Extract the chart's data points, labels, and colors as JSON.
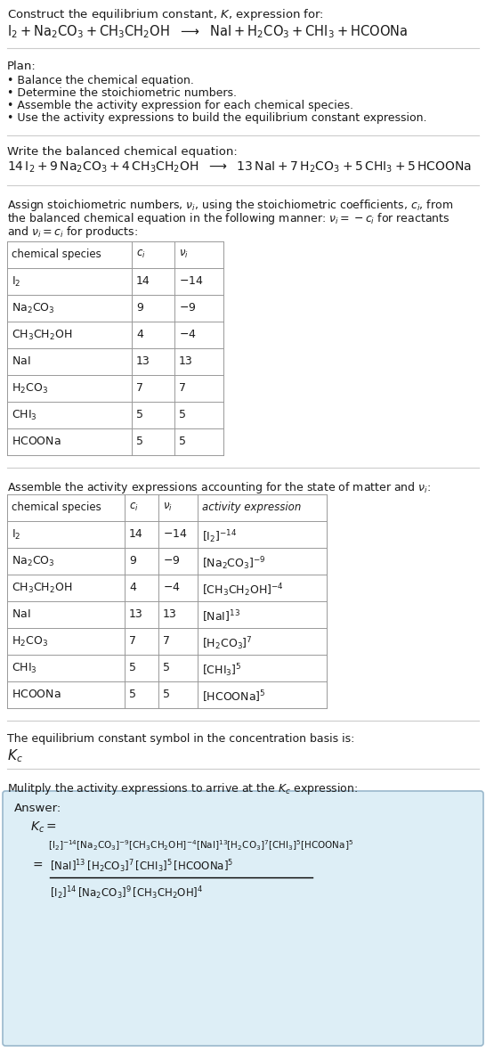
{
  "bg_color": "#ffffff",
  "text_color": "#1a1a1a",
  "title_line1": "Construct the equilibrium constant, $K$, expression for:",
  "plan_header": "Plan:",
  "plan_items": [
    "• Balance the chemical equation.",
    "• Determine the stoichiometric numbers.",
    "• Assemble the activity expression for each chemical species.",
    "• Use the activity expressions to build the equilibrium constant expression."
  ],
  "balanced_header": "Write the balanced chemical equation:",
  "stoich_header_parts": [
    "Assign stoichiometric numbers, $\\nu_i$, using the stoichiometric coefficients, $c_i$, from",
    "the balanced chemical equation in the following manner: $\\nu_i = -c_i$ for reactants",
    "and $\\nu_i = c_i$ for products:"
  ],
  "table1_cols": [
    "chemical species",
    "$c_i$",
    "$\\nu_i$"
  ],
  "table1_data": [
    [
      "$\\mathrm{I_2}$",
      "14",
      "$-14$"
    ],
    [
      "$\\mathrm{Na_2CO_3}$",
      "9",
      "$-9$"
    ],
    [
      "$\\mathrm{CH_3CH_2OH}$",
      "4",
      "$-4$"
    ],
    [
      "$\\mathrm{NaI}$",
      "13",
      "13"
    ],
    [
      "$\\mathrm{H_2CO_3}$",
      "7",
      "7"
    ],
    [
      "$\\mathrm{CHI_3}$",
      "5",
      "5"
    ],
    [
      "$\\mathrm{HCOONa}$",
      "5",
      "5"
    ]
  ],
  "activity_header": "Assemble the activity expressions accounting for the state of matter and $\\nu_i$:",
  "table2_cols": [
    "chemical species",
    "$c_i$",
    "$\\nu_i$",
    "activity expression"
  ],
  "table2_data": [
    [
      "$\\mathrm{I_2}$",
      "14",
      "$-14$",
      "$[\\mathrm{I_2}]^{-14}$"
    ],
    [
      "$\\mathrm{Na_2CO_3}$",
      "9",
      "$-9$",
      "$[\\mathrm{Na_2CO_3}]^{-9}$"
    ],
    [
      "$\\mathrm{CH_3CH_2OH}$",
      "4",
      "$-4$",
      "$[\\mathrm{CH_3CH_2OH}]^{-4}$"
    ],
    [
      "$\\mathrm{NaI}$",
      "13",
      "13",
      "$[\\mathrm{NaI}]^{13}$"
    ],
    [
      "$\\mathrm{H_2CO_3}$",
      "7",
      "7",
      "$[\\mathrm{H_2CO_3}]^{7}$"
    ],
    [
      "$\\mathrm{CHI_3}$",
      "5",
      "5",
      "$[\\mathrm{CHI_3}]^{5}$"
    ],
    [
      "$\\mathrm{HCOONa}$",
      "5",
      "5",
      "$[\\mathrm{HCOONa}]^{5}$"
    ]
  ],
  "kc_header": "The equilibrium constant symbol in the concentration basis is:",
  "kc_symbol": "$K_c$",
  "multiply_header": "Mulitply the activity expressions to arrive at the $K_c$ expression:",
  "answer_label": "Answer:",
  "answer_box_color": "#ddeef6",
  "answer_box_border": "#9ab8cc",
  "sep_color": "#cccccc",
  "table_border": "#999999"
}
